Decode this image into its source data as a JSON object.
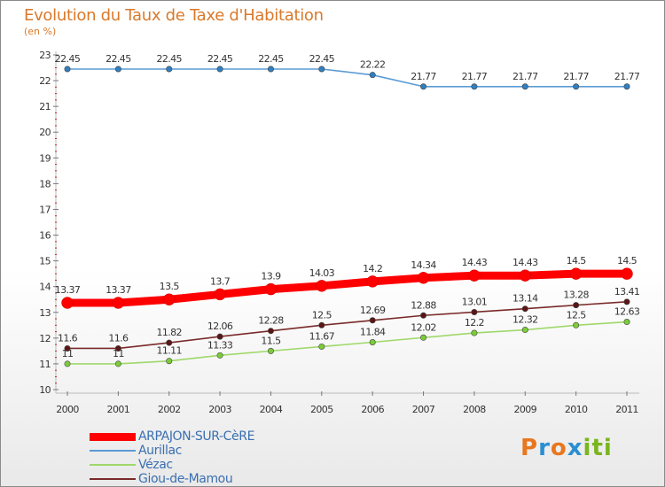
{
  "header": {
    "title": "Evolution du Taux de Taxe d'Habitation",
    "subtitle": "(en %)"
  },
  "logo": {
    "letters": [
      "P",
      "r",
      "o",
      "x",
      "i",
      "t",
      "i"
    ],
    "colors": [
      "#e8771e",
      "#2a8fd0",
      "#e8771e",
      "#2a8fd0",
      "#7ab51d",
      "#7ab51d",
      "#7ab51d"
    ]
  },
  "chart_data": {
    "type": "line",
    "title": "Evolution du Taux de Taxe d'Habitation",
    "ylabel": "(en %)",
    "xlabel": "",
    "x": [
      "2000",
      "2001",
      "2002",
      "2003",
      "2004",
      "2005",
      "2006",
      "2007",
      "2008",
      "2009",
      "2010",
      "2011"
    ],
    "ylim": [
      10,
      23
    ],
    "yticks": [
      "10",
      "11",
      "12",
      "13",
      "14",
      "15",
      "16",
      "17",
      "18",
      "19",
      "20",
      "21",
      "22",
      "23"
    ],
    "grid": false,
    "legend_position": "bottom-left",
    "series": [
      {
        "name": "ARPAJON-SUR-CèRE",
        "color": "#ff0000",
        "marker_color": "#ff0000",
        "emphasis": true,
        "values": [
          13.37,
          13.37,
          13.5,
          13.7,
          13.9,
          14.03,
          14.2,
          14.34,
          14.43,
          14.43,
          14.5,
          14.5
        ],
        "labels": [
          "13.37",
          "13.37",
          "13.5",
          "13.7",
          "13.9",
          "14.03",
          "14.2",
          "14.34",
          "14.43",
          "14.43",
          "14.5",
          "14.5"
        ]
      },
      {
        "name": "Aurillac",
        "color": "#5b9bd5",
        "marker_color": "#2f7fc1",
        "emphasis": false,
        "values": [
          22.45,
          22.45,
          22.45,
          22.45,
          22.45,
          22.45,
          22.22,
          21.77,
          21.77,
          21.77,
          21.77,
          21.77
        ],
        "labels": [
          "22.45",
          "22.45",
          "22.45",
          "22.45",
          "22.45",
          "22.45",
          "22.22",
          "21.77",
          "21.77",
          "21.77",
          "21.77",
          "21.77"
        ]
      },
      {
        "name": "Vézac",
        "color": "#9fd86a",
        "marker_color": "#7ccc3a",
        "emphasis": false,
        "values": [
          11,
          11,
          11.11,
          11.33,
          11.5,
          11.67,
          11.84,
          12.02,
          12.2,
          12.32,
          12.5,
          12.63
        ],
        "labels": [
          "11",
          "11",
          "11.11",
          "11.33",
          "11.5",
          "11.67",
          "11.84",
          "12.02",
          "12.2",
          "12.32",
          "12.5",
          "12.63"
        ]
      },
      {
        "name": "Giou-de-Mamou",
        "color": "#7a2a2a",
        "marker_color": "#5a1616",
        "emphasis": false,
        "values": [
          11.6,
          11.6,
          11.82,
          12.06,
          12.28,
          12.5,
          12.69,
          12.88,
          13.01,
          13.14,
          13.28,
          13.41
        ],
        "labels": [
          "11.6",
          "11.6",
          "11.82",
          "12.06",
          "12.28",
          "12.5",
          "12.69",
          "12.88",
          "13.01",
          "13.14",
          "13.28",
          "13.41"
        ]
      }
    ]
  },
  "legend": {
    "items": [
      {
        "label": "ARPAJON-SUR-CèRE",
        "color": "#ff0000",
        "text_color": "#3a6fb0",
        "thick": true
      },
      {
        "label": "Aurillac",
        "color": "#5b9bd5",
        "text_color": "#3a6fb0",
        "thick": false
      },
      {
        "label": "Vézac",
        "color": "#9fd86a",
        "text_color": "#3a6fb0",
        "thick": false
      },
      {
        "label": "Giou-de-Mamou",
        "color": "#7a2a2a",
        "text_color": "#3a6fb0",
        "thick": false
      }
    ]
  }
}
